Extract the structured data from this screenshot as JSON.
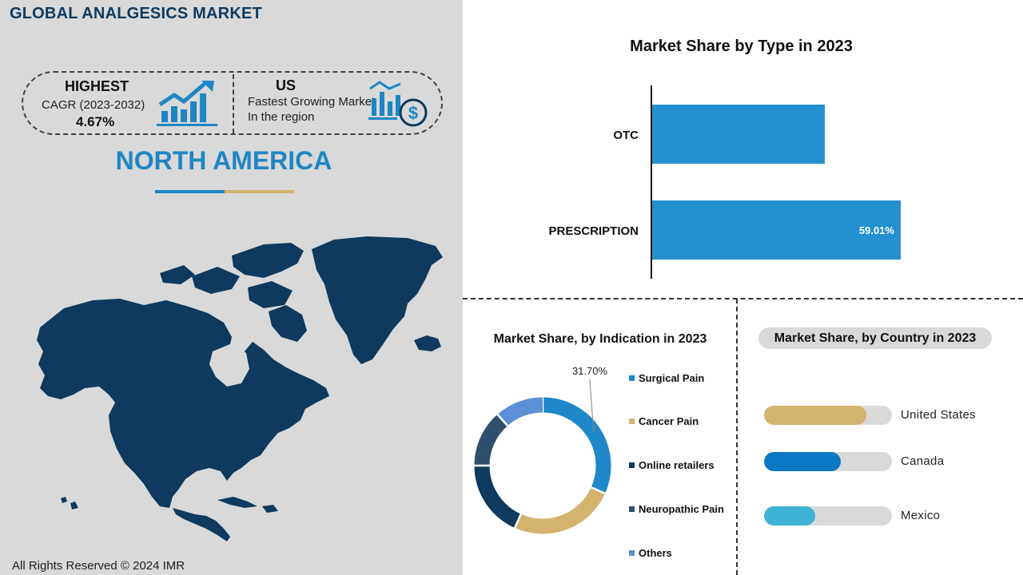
{
  "report_title": "GLOBAL ANALGESICS MARKET",
  "stats": {
    "highest_label": "HIGHEST",
    "cagr_label": "CAGR (2023-2032)",
    "cagr_value": "4.67%",
    "us_label": "US",
    "fastest_label": "Fastest Growing Market In the region"
  },
  "region": "NORTH AMERICA",
  "copyright": "All Rights Reserved © 2024 IMR",
  "colors": {
    "navy": "#0d3a5e",
    "bar_blue": "#2590cf",
    "accent_blue": "#1f86c4",
    "gold": "#d4b36f",
    "panel_grey": "#d9d9d9"
  },
  "icons": [
    "growth-chart-icon",
    "bar-chart-dollar-icon"
  ],
  "chart_data": [
    {
      "type": "bar",
      "orientation": "horizontal",
      "title": "Market Share by Type  in 2023",
      "categories": [
        "OTC",
        "PRESCRIPTION"
      ],
      "values": [
        40.99,
        59.01
      ],
      "data_labels": [
        "",
        "59.01%"
      ],
      "xlim": [
        0,
        100
      ],
      "color": "#2590cf"
    },
    {
      "type": "pie",
      "style": "donut",
      "title": "Market Share, by Indication in 2023",
      "categories": [
        "Surgical Pain",
        "Cancer Pain",
        "Online retailers",
        "Neuropathic Pain",
        "Others"
      ],
      "values": [
        31.7,
        25.0,
        18.3,
        13.5,
        11.5
      ],
      "colors": [
        "#1e88c8",
        "#d4b36f",
        "#0d3a5e",
        "#2f4f6f",
        "#5b8fd6"
      ],
      "annotation": "31.70%",
      "legend": "right"
    },
    {
      "type": "bar",
      "orientation": "horizontal",
      "title": "Market Share, by Country in 2023",
      "categories": [
        "United States",
        "Canada",
        "Mexico"
      ],
      "values": [
        80,
        60,
        40
      ],
      "xlim": [
        0,
        100
      ],
      "colors": [
        "#d4b36f",
        "#0a78c2",
        "#3fb3d6"
      ]
    }
  ]
}
